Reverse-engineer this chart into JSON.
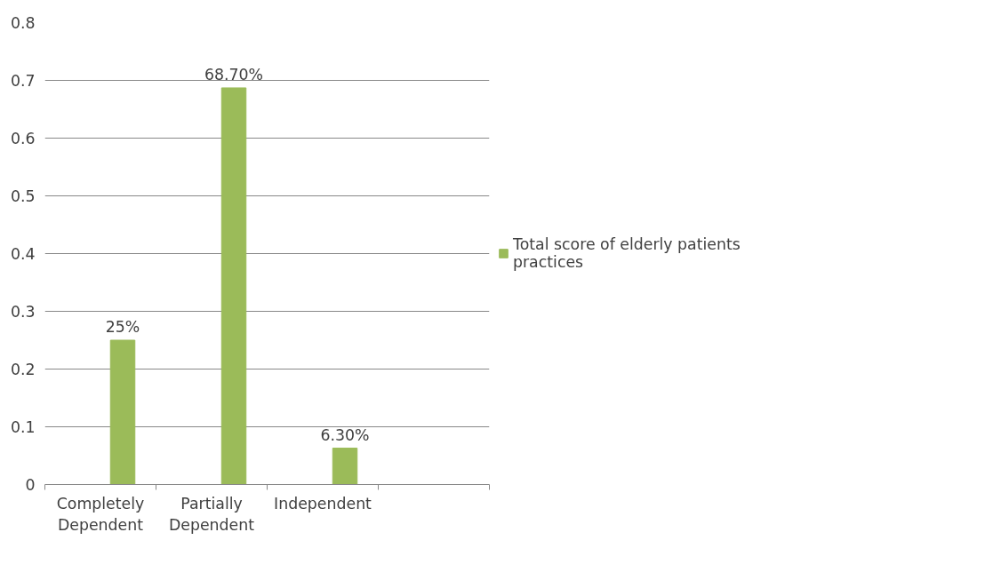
{
  "chart_data": {
    "type": "bar",
    "categories": [
      "Completely Dependent",
      "Partially Dependent",
      "Independent",
      null
    ],
    "series": [
      {
        "name": "Total score of elderly patients practices",
        "color": "#9bbb59",
        "values": [
          0.25,
          0.687,
          0.063,
          null
        ],
        "value_labels": [
          "25%",
          "68.70%",
          "6.30%",
          null
        ]
      }
    ],
    "ylim": [
      0,
      0.8
    ],
    "yticks": [
      0,
      0.1,
      0.2,
      0.3,
      0.4,
      0.5,
      0.6,
      0.7,
      0.8
    ],
    "grid": "y",
    "legend": "right"
  }
}
